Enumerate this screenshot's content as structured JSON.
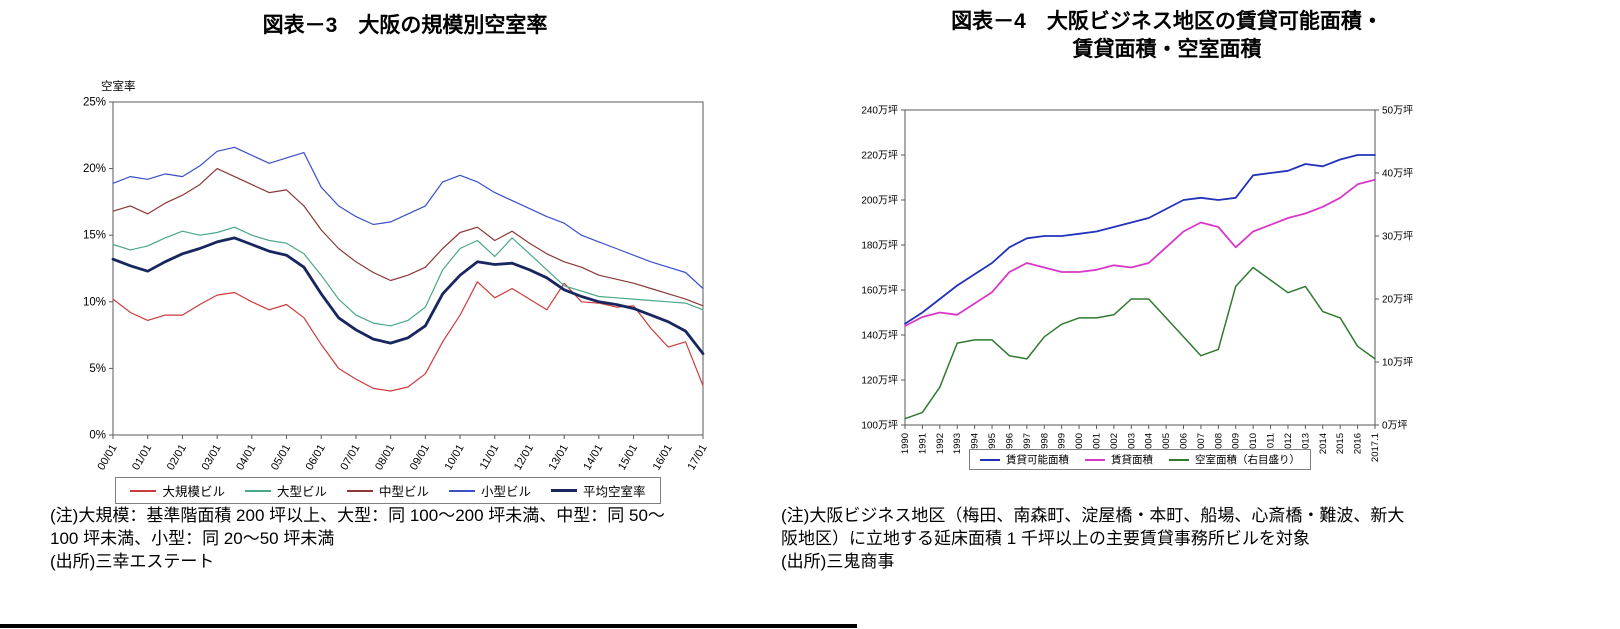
{
  "left_panel": {
    "notes": [
      "(注)大規模：基準階面積 200 坪以上、大型：同 100～200 坪未満、中型：同 50～",
      "100 坪未満、小型：同 20～50 坪未満",
      "(出所)三幸エステート"
    ]
  },
  "right_panel": {
    "title_line1": "図表－4　大阪ビジネス地区の賃貸可能面積・",
    "title_line2": "賃貸面積・空室面積",
    "notes": [
      "(注)大阪ビジネス地区（梅田、南森町、淀屋橋・本町、船場、心斎橋・難波、新大",
      "阪地区）に立地する延床面積 1 千坪以上の主要賃貸事務所ビルを対象",
      "(出所)三鬼商事"
    ]
  },
  "chart_data": [
    {
      "type": "line",
      "title": "図表－3　大阪の規模別空室率",
      "ylabel": "空室率",
      "legend_position": "bottom",
      "left_axis": {
        "min": 0,
        "max": 25,
        "unit": "%",
        "ticks": [
          {
            "v": 0,
            "t": "0%"
          },
          {
            "v": 5,
            "t": "5%"
          },
          {
            "v": 10,
            "t": "10%"
          },
          {
            "v": 15,
            "t": "15%"
          },
          {
            "v": 20,
            "t": "20%"
          },
          {
            "v": 25,
            "t": "25%"
          }
        ]
      },
      "x": [
        "00/01",
        "00/07",
        "01/01",
        "01/07",
        "02/01",
        "02/07",
        "03/01",
        "03/07",
        "04/01",
        "04/07",
        "05/01",
        "05/07",
        "06/01",
        "06/07",
        "07/01",
        "07/07",
        "08/01",
        "08/07",
        "09/01",
        "09/07",
        "10/01",
        "10/07",
        "11/01",
        "11/07",
        "12/01",
        "12/07",
        "13/01",
        "13/07",
        "14/01",
        "14/07",
        "15/01",
        "15/07",
        "16/01",
        "16/07",
        "17/01"
      ],
      "x_tick_step": 2,
      "x_tick_labels": [
        "00/01",
        "01/01",
        "02/01",
        "03/01",
        "04/01",
        "05/01",
        "06/01",
        "07/01",
        "08/01",
        "09/01",
        "10/01",
        "11/01",
        "12/01",
        "13/01",
        "14/01",
        "15/01",
        "16/01",
        "17/01"
      ],
      "series": [
        {
          "id": "large-scale",
          "name": "大規模ビル",
          "color": "#cc3b3b",
          "width": 1.2,
          "axis": "left",
          "values": [
            10.2,
            9.2,
            8.6,
            9.0,
            9.0,
            9.8,
            10.5,
            10.7,
            10.0,
            9.4,
            9.8,
            8.8,
            6.8,
            5.0,
            4.2,
            3.5,
            3.3,
            3.6,
            4.6,
            7.0,
            9.0,
            11.5,
            10.3,
            11.0,
            10.2,
            9.4,
            11.4,
            10.0,
            9.9,
            9.6,
            9.7,
            8.0,
            6.6,
            7.0,
            3.7
          ]
        },
        {
          "id": "large",
          "name": "大型ビル",
          "color": "#4aa886",
          "width": 1.2,
          "axis": "left",
          "values": [
            14.3,
            13.9,
            14.2,
            14.8,
            15.3,
            15.0,
            15.2,
            15.6,
            15.0,
            14.6,
            14.4,
            13.6,
            12.0,
            10.2,
            9.0,
            8.4,
            8.2,
            8.6,
            9.6,
            12.4,
            14.0,
            14.6,
            13.4,
            14.8,
            13.6,
            12.4,
            11.2,
            10.8,
            10.4,
            10.3,
            10.2,
            10.1,
            10.0,
            9.9,
            9.4
          ]
        },
        {
          "id": "medium",
          "name": "中型ビル",
          "color": "#8c3838",
          "width": 1.2,
          "axis": "left",
          "values": [
            16.8,
            17.2,
            16.6,
            17.4,
            18.0,
            18.8,
            20.0,
            19.4,
            18.8,
            18.2,
            18.4,
            17.2,
            15.4,
            14.0,
            13.0,
            12.2,
            11.6,
            12.0,
            12.6,
            14.0,
            15.2,
            15.6,
            14.6,
            15.3,
            14.4,
            13.6,
            13.0,
            12.6,
            12.0,
            11.7,
            11.4,
            11.0,
            10.6,
            10.2,
            9.7
          ]
        },
        {
          "id": "small",
          "name": "小型ビル",
          "color": "#3a50c8",
          "width": 1.2,
          "axis": "left",
          "values": [
            18.9,
            19.4,
            19.2,
            19.6,
            19.4,
            20.2,
            21.3,
            21.6,
            21.0,
            20.4,
            20.8,
            21.2,
            18.6,
            17.2,
            16.4,
            15.8,
            16.0,
            16.6,
            17.2,
            19.0,
            19.5,
            19.0,
            18.2,
            17.6,
            17.0,
            16.4,
            15.9,
            15.0,
            14.5,
            14.0,
            13.5,
            13.0,
            12.6,
            12.2,
            11.0
          ]
        },
        {
          "id": "average",
          "name": "平均空室率",
          "color": "#17265e",
          "width": 2.8,
          "axis": "left",
          "values": [
            13.2,
            12.7,
            12.3,
            13.0,
            13.6,
            14.0,
            14.5,
            14.8,
            14.3,
            13.8,
            13.5,
            12.6,
            10.6,
            8.8,
            7.9,
            7.2,
            6.9,
            7.3,
            8.2,
            10.6,
            12.0,
            13.0,
            12.8,
            12.9,
            12.4,
            11.8,
            10.9,
            10.4,
            10.0,
            9.8,
            9.5,
            9.0,
            8.5,
            7.8,
            6.1
          ]
        }
      ]
    },
    {
      "type": "line",
      "title": "図表－4　大阪ビジネス地区の賃貸可能面積・賃貸面積・空室面積",
      "legend_position": "bottom",
      "left_axis": {
        "min": 100,
        "max": 240,
        "unit": "万坪",
        "ticks": [
          {
            "v": 100,
            "t": "100万坪"
          },
          {
            "v": 120,
            "t": "120万坪"
          },
          {
            "v": 140,
            "t": "140万坪"
          },
          {
            "v": 160,
            "t": "160万坪"
          },
          {
            "v": 180,
            "t": "180万坪"
          },
          {
            "v": 200,
            "t": "200万坪"
          },
          {
            "v": 220,
            "t": "220万坪"
          },
          {
            "v": 240,
            "t": "240万坪"
          }
        ]
      },
      "right_axis": {
        "min": 0,
        "max": 50,
        "unit": "万坪",
        "ticks": [
          {
            "v": 0,
            "t": "0万坪"
          },
          {
            "v": 10,
            "t": "10万坪"
          },
          {
            "v": 20,
            "t": "20万坪"
          },
          {
            "v": 30,
            "t": "30万坪"
          },
          {
            "v": 40,
            "t": "40万坪"
          },
          {
            "v": 50,
            "t": "50万坪"
          }
        ]
      },
      "x": [
        "1990",
        "1991",
        "1992",
        "1993",
        "1994",
        "1995",
        "1996",
        "1997",
        "1998",
        "1999",
        "2000",
        "2001",
        "2002",
        "2003",
        "2004",
        "2005",
        "2006",
        "2007",
        "2008",
        "2009",
        "2010",
        "2011",
        "2012",
        "2013",
        "2014",
        "2015",
        "2016",
        "2017.1"
      ],
      "x_tick_step": 1,
      "series": [
        {
          "id": "rentable-area",
          "name": "賃貸可能面積",
          "color": "#2233bb",
          "width": 1.8,
          "axis": "left",
          "values": [
            145,
            150,
            156,
            162,
            167,
            172,
            179,
            183,
            184,
            184,
            185,
            186,
            188,
            190,
            192,
            196,
            200,
            201,
            200,
            201,
            211,
            212,
            213,
            216,
            215,
            218,
            220,
            220
          ]
        },
        {
          "id": "rented-area",
          "name": "賃貸面積",
          "color": "#d838c8",
          "width": 1.8,
          "axis": "left",
          "values": [
            144,
            148,
            150,
            149,
            154,
            159,
            168,
            172,
            170,
            168,
            168,
            169,
            171,
            170,
            172,
            179,
            186,
            190,
            188,
            179,
            186,
            189,
            192,
            194,
            197,
            201,
            207,
            209
          ]
        },
        {
          "id": "vacant-area",
          "name": "空室面積（右目盛り）",
          "color": "#2f7a2f",
          "width": 1.5,
          "axis": "right",
          "values": [
            1,
            2,
            6,
            13,
            13.5,
            13.5,
            11,
            10.5,
            14,
            16,
            17,
            17,
            17.5,
            20,
            20,
            17,
            14,
            11,
            12,
            22,
            25,
            23,
            21,
            22,
            18,
            17,
            12.5,
            10.5
          ]
        }
      ]
    }
  ]
}
